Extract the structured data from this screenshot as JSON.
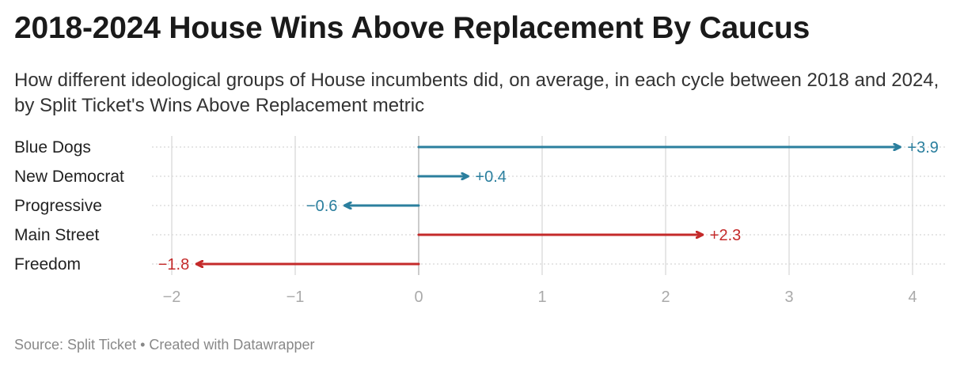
{
  "title": "2018-2024 House Wins Above Replacement By Caucus",
  "subtitle": "How different ideological groups of House incumbents did, on average, in each cycle between 2018 and 2024, by Split Ticket's Wins Above Replacement metric",
  "footer": "Source: Split Ticket • Created with Datawrapper",
  "colors": {
    "democrat": "#2b7f9e",
    "republican": "#c42a2a",
    "grid": "#dddddd",
    "zero_line": "#cccccc",
    "tick_label": "#aaaaaa",
    "row_label": "#222222"
  },
  "chart_data": {
    "type": "bar",
    "subtype": "arrow",
    "categories": [
      "Blue Dogs",
      "New Democrat",
      "Progressive",
      "Main Street",
      "Freedom"
    ],
    "values": [
      3.9,
      0.4,
      -0.6,
      2.3,
      -1.8
    ],
    "value_labels": [
      "+3.9",
      "+0.4",
      "−0.6",
      "+2.3",
      "−1.8"
    ],
    "groups": [
      "democrat",
      "democrat",
      "democrat",
      "republican",
      "republican"
    ],
    "xlim": [
      -2,
      4
    ],
    "xticks": [
      -2,
      -1,
      0,
      1,
      2,
      3,
      4
    ],
    "xtick_labels": [
      "−2",
      "−1",
      "0",
      "1",
      "2",
      "3",
      "4"
    ],
    "grid": true,
    "legend": "none"
  }
}
